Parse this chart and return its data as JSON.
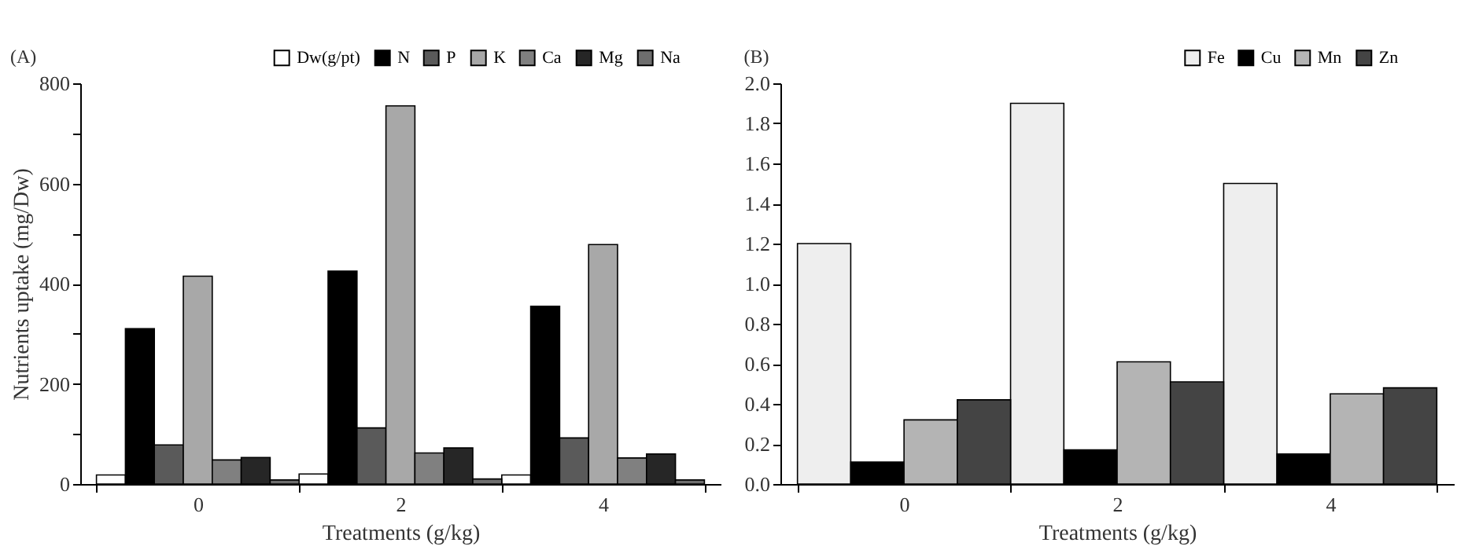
{
  "chart_data": [
    {
      "type": "bar",
      "title": "(A)",
      "xlabel": "Treatments (g/kg)",
      "ylabel": "Nutrients uptake (mg/Dw)",
      "categories": [
        "0",
        "2",
        "4"
      ],
      "ylim": [
        0,
        800
      ],
      "yticks": [
        0,
        {
          "value": 100,
          "label": null
        },
        200,
        {
          "value": 300,
          "label": null
        },
        400,
        {
          "value": 500,
          "label": null
        },
        600,
        {
          "value": 700,
          "label": null
        },
        800
      ],
      "legend": "top right",
      "series": [
        {
          "name": "Dw(g/pt)",
          "color": "#ffffff",
          "values": [
            18,
            20,
            18
          ]
        },
        {
          "name": "N",
          "color": "#000000",
          "values": [
            310,
            425,
            355
          ]
        },
        {
          "name": "P",
          "color": "#5a5a5a",
          "values": [
            78,
            112,
            92
          ]
        },
        {
          "name": "K",
          "color": "#a8a8a8",
          "values": [
            415,
            755,
            478
          ]
        },
        {
          "name": "Ca",
          "color": "#808080",
          "values": [
            48,
            62,
            52
          ]
        },
        {
          "name": "Mg",
          "color": "#262626",
          "values": [
            53,
            72,
            60
          ]
        },
        {
          "name": "Na",
          "color": "#6e6e6e",
          "values": [
            8,
            10,
            8
          ]
        }
      ]
    },
    {
      "type": "bar",
      "title": "(B)",
      "xlabel": "Treatments (g/kg)",
      "categories": [
        "0",
        "2",
        "4"
      ],
      "ylim": [
        0,
        2
      ],
      "yticks": [
        {
          "value": 0,
          "label": "0.0"
        },
        0.2,
        0.4,
        0.6,
        0.8,
        {
          "value": 1,
          "label": "1.0"
        },
        1.2,
        1.4,
        1.6,
        1.8,
        {
          "value": 2,
          "label": "2.0"
        }
      ],
      "legend": "top right",
      "series": [
        {
          "name": "Fe",
          "color": "#eeeeee",
          "values": [
            1.2,
            1.9,
            1.5
          ]
        },
        {
          "name": "Cu",
          "color": "#000000",
          "values": [
            0.11,
            0.17,
            0.15
          ]
        },
        {
          "name": "Mn",
          "color": "#b4b4b4",
          "values": [
            0.32,
            0.61,
            0.45
          ]
        },
        {
          "name": "Zn",
          "color": "#444444",
          "values": [
            0.42,
            0.51,
            0.48
          ]
        }
      ]
    }
  ]
}
